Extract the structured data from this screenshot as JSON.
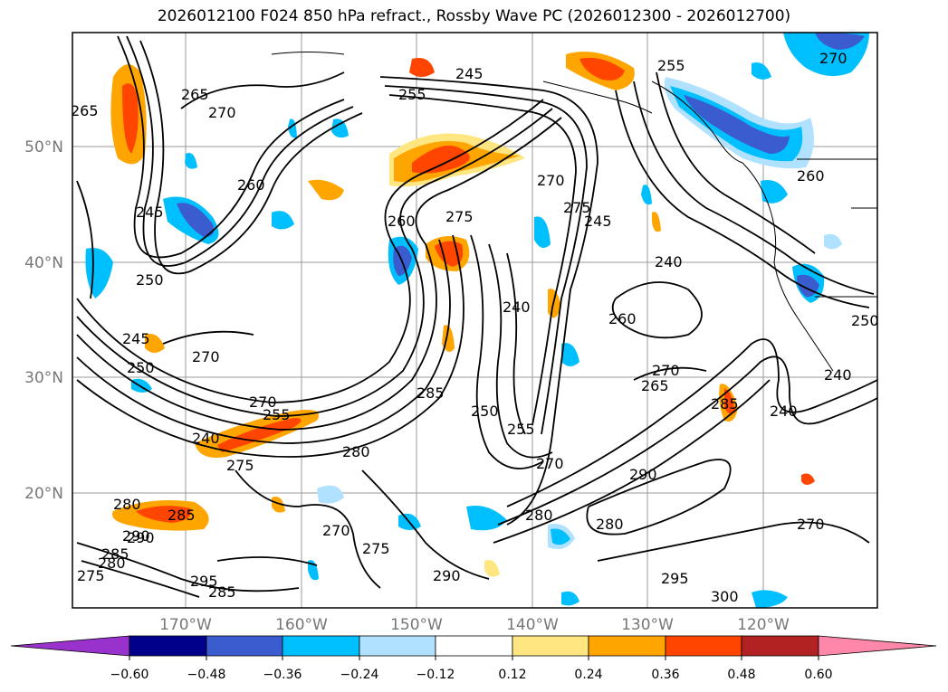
{
  "title": "2026012100 F024 850 hPa refract., Rossby Wave PC (2026012300 - 2026012700)",
  "map": {
    "lat_labels": [
      "50°N",
      "40°N",
      "30°N",
      "20°N"
    ],
    "lon_labels": [
      "170°W",
      "160°W",
      "150°W",
      "140°W",
      "130°W",
      "120°W"
    ],
    "contour_labels": [
      "265",
      "265",
      "270",
      "260",
      "245",
      "250",
      "245",
      "250",
      "270",
      "270",
      "255",
      "240",
      "275",
      "280",
      "285",
      "290",
      "295",
      "285",
      "280",
      "275",
      "285",
      "245",
      "255",
      "255",
      "270",
      "260",
      "275",
      "270",
      "275",
      "285",
      "280",
      "290",
      "300",
      "295",
      "260",
      "245",
      "240",
      "250",
      "240",
      "270",
      "265",
      "285",
      "240",
      "255",
      "250",
      "260",
      "240",
      "290",
      "280",
      "275",
      "270",
      "270",
      "290",
      "280",
      "270"
    ]
  },
  "colorbar": {
    "ticks": [
      "−0.60",
      "−0.48",
      "−0.36",
      "−0.24",
      "−0.12",
      "0.12",
      "0.24",
      "0.36",
      "0.48",
      "0.60"
    ],
    "colors": [
      "#9932cc",
      "#00008b",
      "#3b5ccf",
      "#00bfff",
      "#b0e2ff",
      "#ffffff",
      "#ffe680",
      "#ffa500",
      "#ff4500",
      "#b22222",
      "#ff88aa"
    ]
  }
}
